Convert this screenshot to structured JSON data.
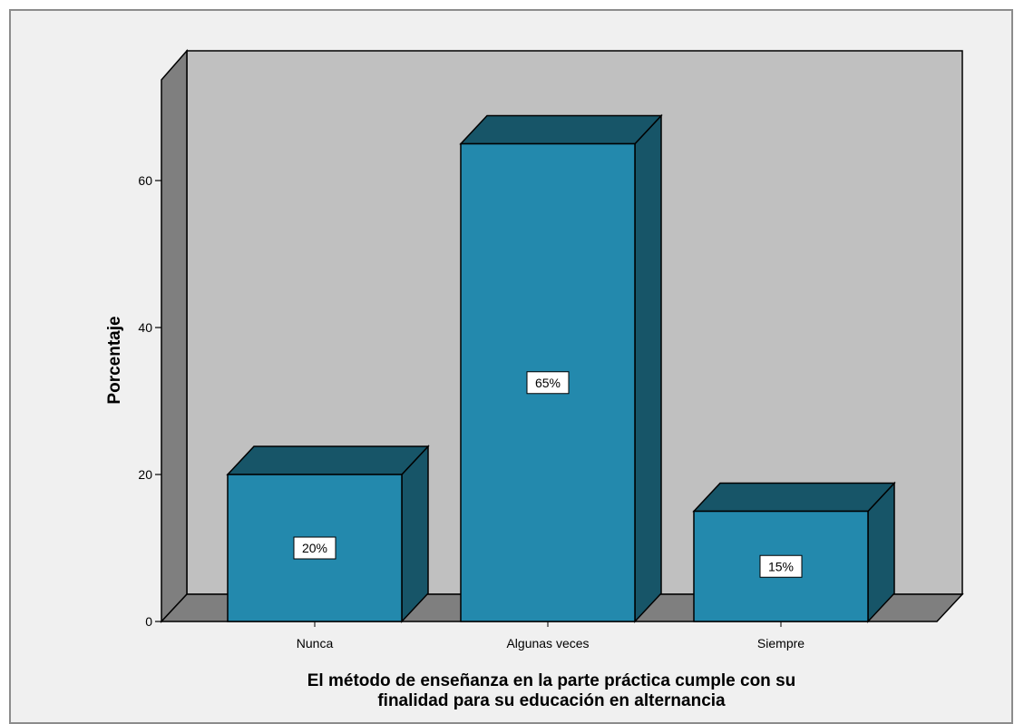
{
  "chart_data": {
    "type": "bar",
    "categories": [
      "Nunca",
      "Algunas veces",
      "Siempre"
    ],
    "values": [
      20,
      65,
      15
    ],
    "data_labels": [
      "20%",
      "65%",
      "15%"
    ],
    "xlabel": "El método de enseñanza en la parte práctica cumple con su finalidad para su educación en alternancia",
    "xlabel_lines": [
      "El método de enseñanza en la parte práctica cumple con su",
      "finalidad para su educación en alternancia"
    ],
    "ylabel": "Porcentaje",
    "yticks": [
      0,
      20,
      40,
      60
    ],
    "ylim": [
      0,
      75
    ],
    "grid": false,
    "legend": "none",
    "style": "3d-bar",
    "colors": {
      "bar_front": "#2389ad",
      "bar_top": "#175568",
      "bar_side": "#175568",
      "back_wall": "#c0c0c0",
      "floor": "#7f7f7f",
      "left_wall": "#7f7f7f",
      "frame_bg": "#f0f0f0"
    }
  }
}
